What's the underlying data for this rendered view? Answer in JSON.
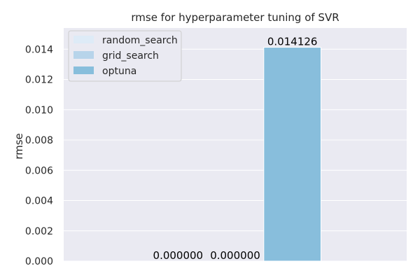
{
  "chart_data": {
    "type": "bar",
    "title": "rmse for hyperparameter tuning of SVR",
    "xlabel": "",
    "ylabel": "rmse",
    "ylim": [
      0,
      0.0154
    ],
    "yticks": [
      "0.000",
      "0.002",
      "0.004",
      "0.006",
      "0.008",
      "0.010",
      "0.012",
      "0.014"
    ],
    "grid": true,
    "legend_position": "top-left",
    "series": [
      {
        "name": "random_search",
        "value": 0.0,
        "label": "0.000000",
        "color": "#deebf7"
      },
      {
        "name": "grid_search",
        "value": 0.0,
        "label": "0.000000",
        "color": "#b7d4ea"
      },
      {
        "name": "optuna",
        "value": 0.014126,
        "label": "0.014126",
        "color": "#88bedc"
      }
    ],
    "colors": {
      "plot_background": "#eaeaf2",
      "grid": "#ffffff",
      "text": "#262626"
    }
  }
}
